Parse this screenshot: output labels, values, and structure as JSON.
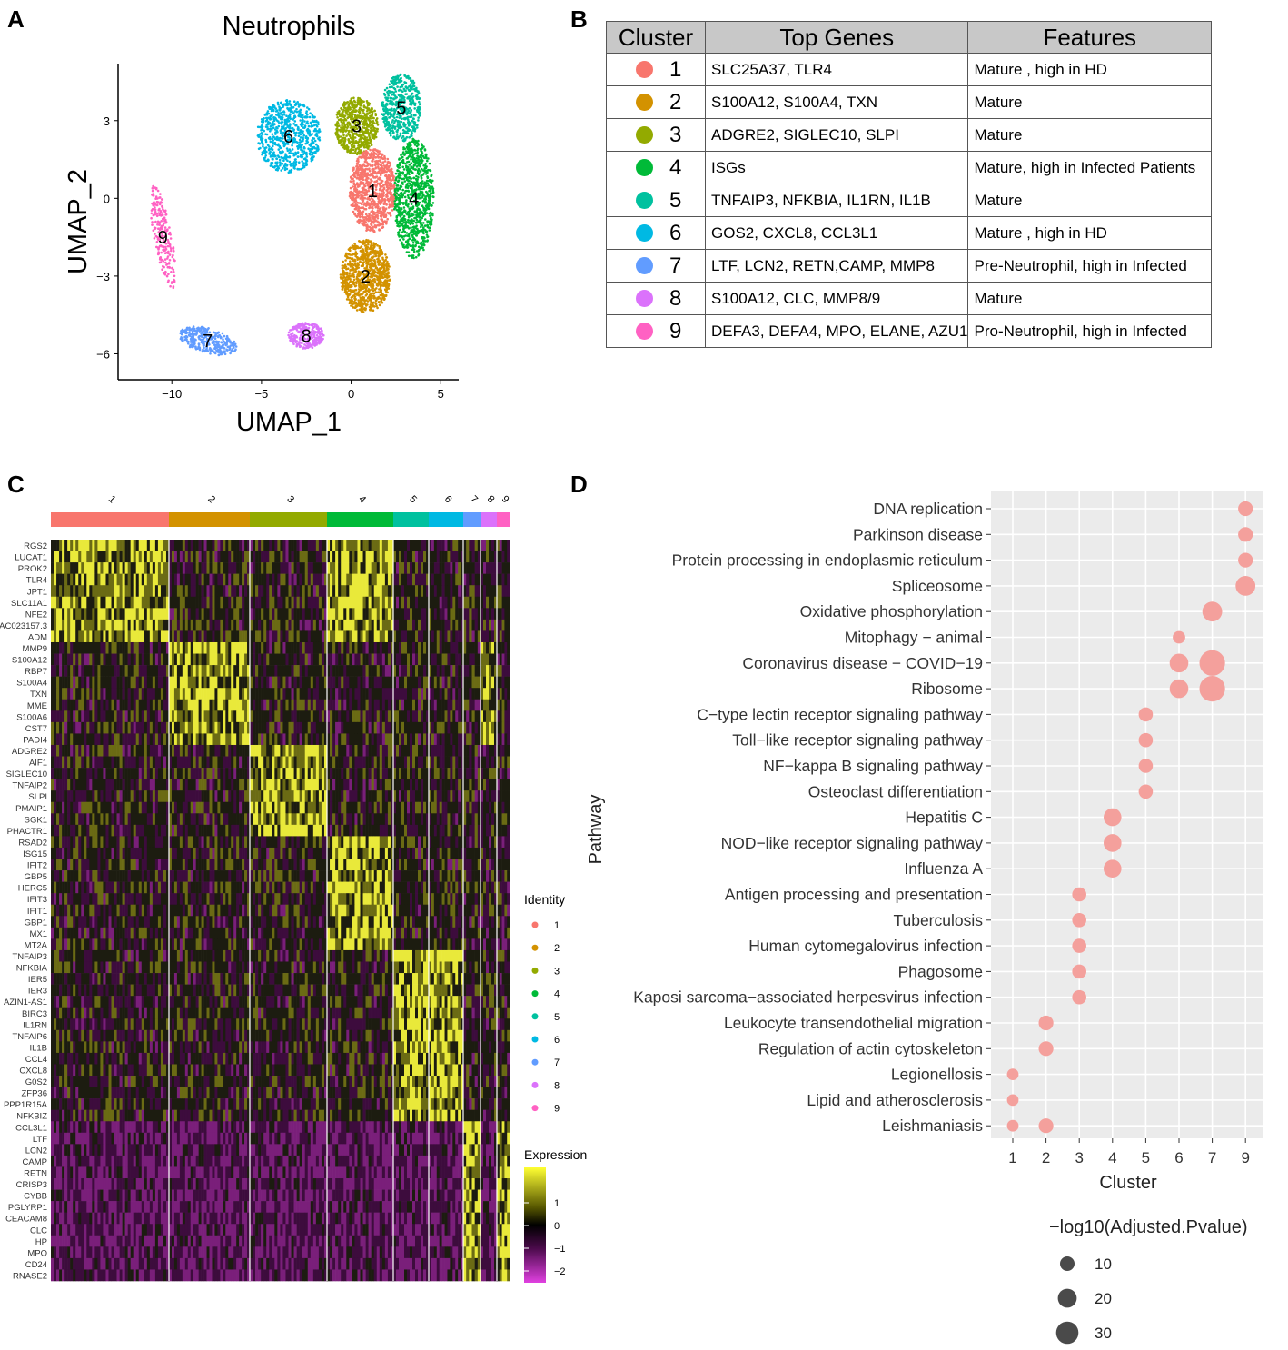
{
  "panels": {
    "a": "A",
    "b": "B",
    "c": "C",
    "d": "D"
  },
  "umap": {
    "title": "Neutrophils",
    "xlabel": "UMAP_1",
    "ylabel": "UMAP_2",
    "xticks": [
      "−10",
      "−5",
      "0",
      "5"
    ],
    "yticks": [
      "3",
      "0",
      "−3",
      "−6"
    ],
    "cluster_labels": [
      "1",
      "2",
      "3",
      "4",
      "5",
      "6",
      "7",
      "8",
      "9"
    ]
  },
  "cluster_colors": [
    "#F8766D",
    "#D39200",
    "#93AA00",
    "#00BA38",
    "#00C19F",
    "#00B9E3",
    "#619CFF",
    "#DB72FB",
    "#FF61C3"
  ],
  "table": {
    "headers": [
      "Cluster",
      "Top Genes",
      "Features"
    ],
    "rows": [
      {
        "cluster": "1",
        "genes": "SLC25A37, TLR4",
        "features": "Mature , high in HD"
      },
      {
        "cluster": "2",
        "genes": "S100A12, S100A4, TXN",
        "features": "Mature"
      },
      {
        "cluster": "3",
        "genes": " ADGRE2, SIGLEC10, SLPI",
        "features": "Mature"
      },
      {
        "cluster": "4",
        "genes": " ISGs",
        "features": "Mature, high in Infected Patients"
      },
      {
        "cluster": "5",
        "genes": " TNFAIP3, NFKBIA, IL1RN, IL1B",
        "features": "Mature"
      },
      {
        "cluster": "6",
        "genes": "  GOS2, CXCL8, CCL3L1",
        "features": "Mature , high in HD"
      },
      {
        "cluster": "7",
        "genes": "LTF, LCN2, RETN,CAMP, MMP8",
        "features": "Pre-Neutrophil, high in Infected"
      },
      {
        "cluster": "8",
        "genes": "S100A12,  CLC, MMP8/9",
        "features": "Mature"
      },
      {
        "cluster": "9",
        "genes": "DEFA3, DEFA4, MPO, ELANE, AZU1",
        "features": "Pro-Neutrophil, high in Infected"
      }
    ]
  },
  "heatmap": {
    "top_labels": [
      "1",
      "2",
      "3",
      "4",
      "5",
      "6",
      "7",
      "8",
      "9"
    ],
    "genes": [
      "RGS2",
      "LUCAT1",
      "PROK2",
      "TLR4",
      "JPT1",
      "SLC11A1",
      "NFE2",
      "AC023157.3",
      "ADM",
      "MMP9",
      "S100A12",
      "RBP7",
      "S100A4",
      "TXN",
      "MME",
      "S100A6",
      "CST7",
      "PADI4",
      "ADGRE2",
      "AIF1",
      "SIGLEC10",
      "TNFAIP2",
      "SLPI",
      "PMAIP1",
      "SGK1",
      "PHACTR1",
      "RSAD2",
      "ISG15",
      "IFIT2",
      "GBP5",
      "HERC5",
      "IFIT3",
      "IFIT1",
      "GBP1",
      "MX1",
      "MT2A",
      "TNFAIP3",
      "NFKBIA",
      "IER5",
      "IER3",
      "AZIN1-AS1",
      "BIRC3",
      "IL1RN",
      "TNFAIP6",
      "IL1B",
      "CCL4",
      "CXCL8",
      "G0S2",
      "ZFP36",
      "PPP1R15A",
      "NFKBIZ",
      "CCL3L1",
      "LTF",
      "LCN2",
      "CAMP",
      "RETN",
      "CRISP3",
      "CYBB",
      "PGLYRP1",
      "CEACAM8",
      "CLC",
      "HP",
      "MPO",
      "CD24",
      "RNASE2"
    ],
    "identity_title": "Identity",
    "identity_labels": [
      "1",
      "2",
      "3",
      "4",
      "5",
      "6",
      "7",
      "8",
      "9"
    ],
    "expression_title": "Expression",
    "expression_ticks": [
      "1",
      "0",
      "−1",
      "−2"
    ]
  },
  "chart_data": [
    {
      "type": "scatter",
      "title": "Neutrophils",
      "xlabel": "UMAP_1",
      "ylabel": "UMAP_2",
      "xlim": [
        -13,
        6
      ],
      "ylim": [
        -7,
        5.2
      ],
      "series": [
        {
          "name": "1",
          "center": [
            1.2,
            0.3
          ]
        },
        {
          "name": "2",
          "center": [
            0.8,
            -3.0
          ]
        },
        {
          "name": "3",
          "center": [
            0.3,
            2.8
          ]
        },
        {
          "name": "4",
          "center": [
            3.5,
            0.0
          ]
        },
        {
          "name": "5",
          "center": [
            2.8,
            3.5
          ]
        },
        {
          "name": "6",
          "center": [
            -3.5,
            2.4
          ]
        },
        {
          "name": "7",
          "center": [
            -8.0,
            -5.5
          ]
        },
        {
          "name": "8",
          "center": [
            -2.5,
            -5.3
          ]
        },
        {
          "name": "9",
          "center": [
            -10.5,
            -1.5
          ]
        }
      ]
    },
    {
      "type": "heatmap",
      "xlabel": "Identity",
      "categories": [
        "1",
        "2",
        "3",
        "4",
        "5",
        "6",
        "7",
        "8",
        "9"
      ],
      "colorbar": {
        "label": "Expression",
        "ticks": [
          1,
          0,
          -1,
          -2
        ]
      }
    },
    {
      "type": "scatter",
      "xlabel": "Cluster",
      "ylabel": "Pathway",
      "x_categories": [
        "1",
        "2",
        "3",
        "4",
        "5",
        "6",
        "7",
        "9"
      ],
      "size_legend_title": "−log10(Adjusted.Pvalue)",
      "size_legend": [
        10,
        20,
        30
      ],
      "points": [
        {
          "pathway": "DNA replication",
          "cluster": "9",
          "size": 8
        },
        {
          "pathway": "Parkinson disease",
          "cluster": "9",
          "size": 8
        },
        {
          "pathway": "Protein processing in endoplasmic reticulum",
          "cluster": "9",
          "size": 8
        },
        {
          "pathway": "Spliceosome",
          "cluster": "9",
          "size": 17
        },
        {
          "pathway": "Oxidative phosphorylation",
          "cluster": "7",
          "size": 17
        },
        {
          "pathway": "Mitophagy − animal",
          "cluster": "6",
          "size": 5
        },
        {
          "pathway": "Coronavirus disease − COVID−19",
          "cluster": "6",
          "size": 15
        },
        {
          "pathway": "Coronavirus disease − COVID−19",
          "cluster": "7",
          "size": 32
        },
        {
          "pathway": "Ribosome",
          "cluster": "6",
          "size": 15
        },
        {
          "pathway": "Ribosome",
          "cluster": "7",
          "size": 32
        },
        {
          "pathway": "C−type lectin receptor signaling pathway",
          "cluster": "5",
          "size": 7
        },
        {
          "pathway": "Toll−like receptor signaling pathway",
          "cluster": "5",
          "size": 7
        },
        {
          "pathway": "NF−kappa B signaling pathway",
          "cluster": "5",
          "size": 7
        },
        {
          "pathway": "Osteoclast differentiation",
          "cluster": "5",
          "size": 7
        },
        {
          "pathway": "Hepatitis C",
          "cluster": "4",
          "size": 13
        },
        {
          "pathway": "NOD−like receptor signaling pathway",
          "cluster": "4",
          "size": 13
        },
        {
          "pathway": "Influenza A",
          "cluster": "4",
          "size": 13
        },
        {
          "pathway": "Antigen processing and presentation",
          "cluster": "3",
          "size": 7
        },
        {
          "pathway": "Tuberculosis",
          "cluster": "3",
          "size": 7
        },
        {
          "pathway": "Human cytomegalovirus infection",
          "cluster": "3",
          "size": 7
        },
        {
          "pathway": "Phagosome",
          "cluster": "3",
          "size": 7
        },
        {
          "pathway": "Kaposi sarcoma−associated herpesvirus infection",
          "cluster": "3",
          "size": 7
        },
        {
          "pathway": "Leukocyte transendothelial migration",
          "cluster": "2",
          "size": 8
        },
        {
          "pathway": "Regulation of actin cytoskeleton",
          "cluster": "2",
          "size": 8
        },
        {
          "pathway": "Legionellosis",
          "cluster": "1",
          "size": 4
        },
        {
          "pathway": "Lipid and atherosclerosis",
          "cluster": "1",
          "size": 4
        },
        {
          "pathway": "Leishmaniasis",
          "cluster": "1",
          "size": 4
        },
        {
          "pathway": "Leishmaniasis",
          "cluster": "2",
          "size": 8
        }
      ],
      "pathways": [
        "DNA replication",
        "Parkinson disease",
        "Protein processing in endoplasmic reticulum",
        "Spliceosome",
        "Oxidative phosphorylation",
        "Mitophagy − animal",
        "Coronavirus disease − COVID−19",
        "Ribosome",
        "C−type lectin receptor signaling pathway",
        "Toll−like receptor signaling pathway",
        "NF−kappa B signaling pathway",
        "Osteoclast differentiation",
        "Hepatitis C",
        "NOD−like receptor signaling pathway",
        "Influenza A",
        "Antigen processing and presentation",
        "Tuberculosis",
        "Human cytomegalovirus infection",
        "Phagosome",
        "Kaposi sarcoma−associated herpesvirus infection",
        "Leukocyte transendothelial migration",
        "Regulation of actin cytoskeleton",
        "Legionellosis",
        "Lipid and atherosclerosis",
        "Leishmaniasis"
      ]
    }
  ]
}
